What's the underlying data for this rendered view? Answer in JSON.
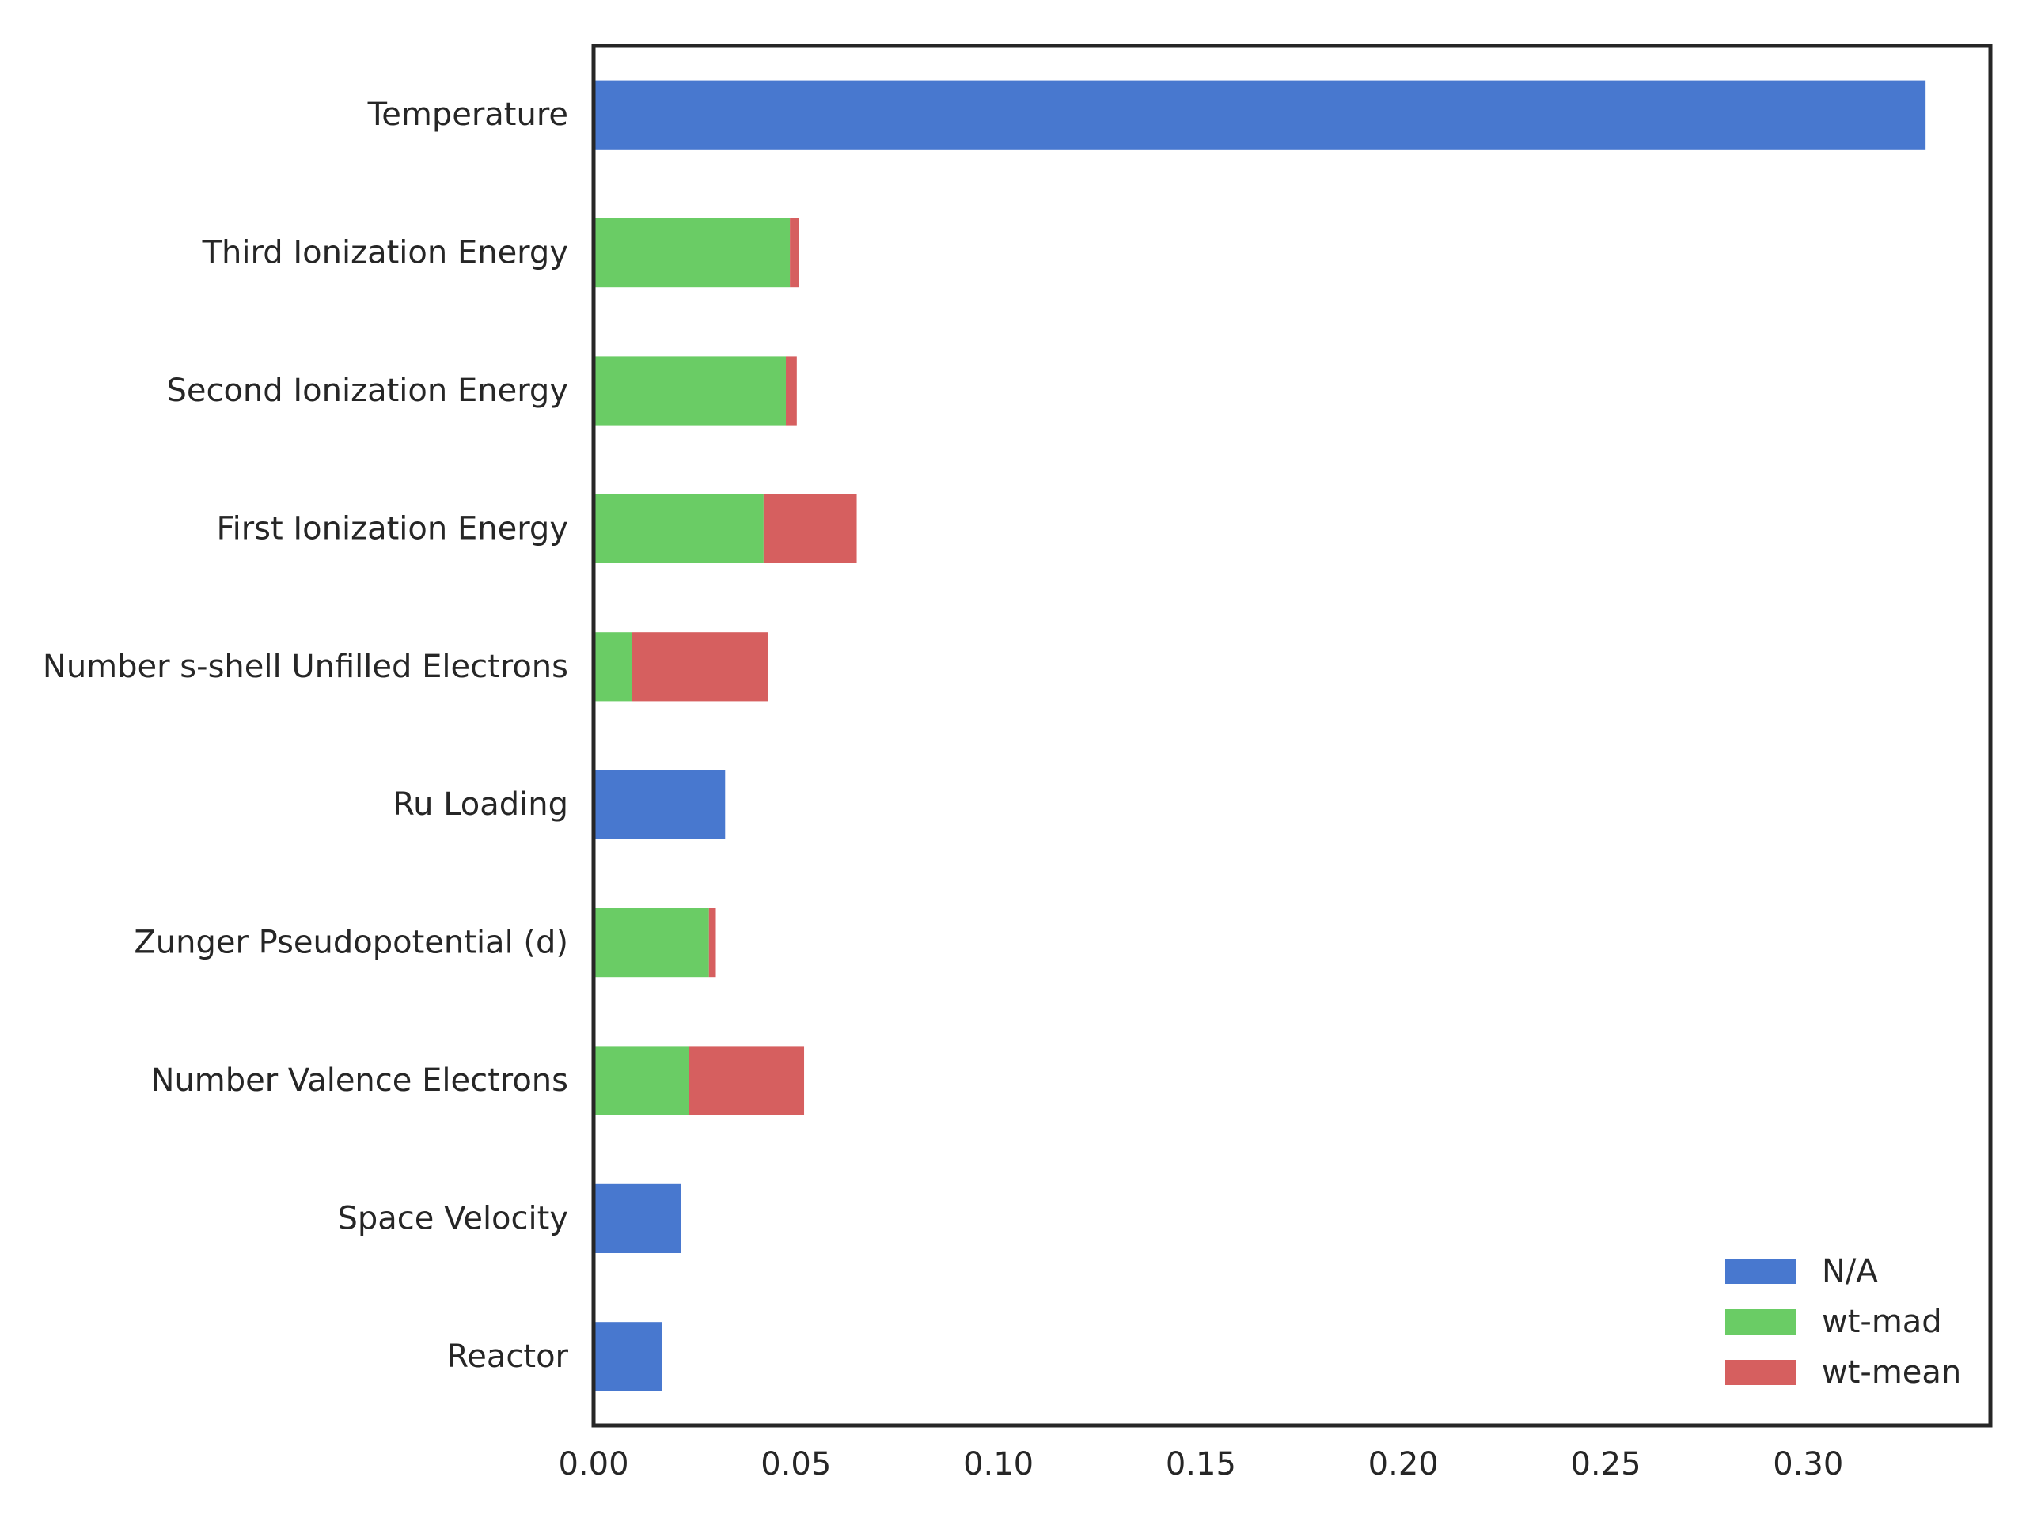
{
  "chart_data": {
    "type": "bar",
    "orientation": "horizontal",
    "stacked": true,
    "title": "",
    "xlabel": "",
    "ylabel": "",
    "xlim": [
      0,
      0.345
    ],
    "xticks": [
      "0.00",
      "0.05",
      "0.10",
      "0.15",
      "0.20",
      "0.25",
      "0.30"
    ],
    "grid": false,
    "legend_position": "bottom-right",
    "categories": [
      "Temperature",
      "Third Ionization Energy",
      "Second Ionization Energy",
      "First Ionization Energy",
      "Number s-shell Unfilled Electrons",
      "Ru Loading",
      "Zunger Pseudopotential (d)",
      "Number Valence Electrons",
      "Space Velocity",
      "Reactor"
    ],
    "series": [
      {
        "name": "N/A",
        "color": "#4878cf",
        "values": [
          0.329,
          0,
          0,
          0,
          0,
          0.0325,
          0,
          0,
          0.0215,
          0.017
        ]
      },
      {
        "name": "wt-mad",
        "color": "#6acc65",
        "values": [
          0,
          0.0485,
          0.0475,
          0.042,
          0.0095,
          0,
          0.0285,
          0.0235,
          0,
          0
        ]
      },
      {
        "name": "wt-mean",
        "color": "#d65f5f",
        "values": [
          0,
          0.0022,
          0.0027,
          0.023,
          0.0335,
          0,
          0.0017,
          0.0285,
          0,
          0
        ]
      }
    ]
  }
}
